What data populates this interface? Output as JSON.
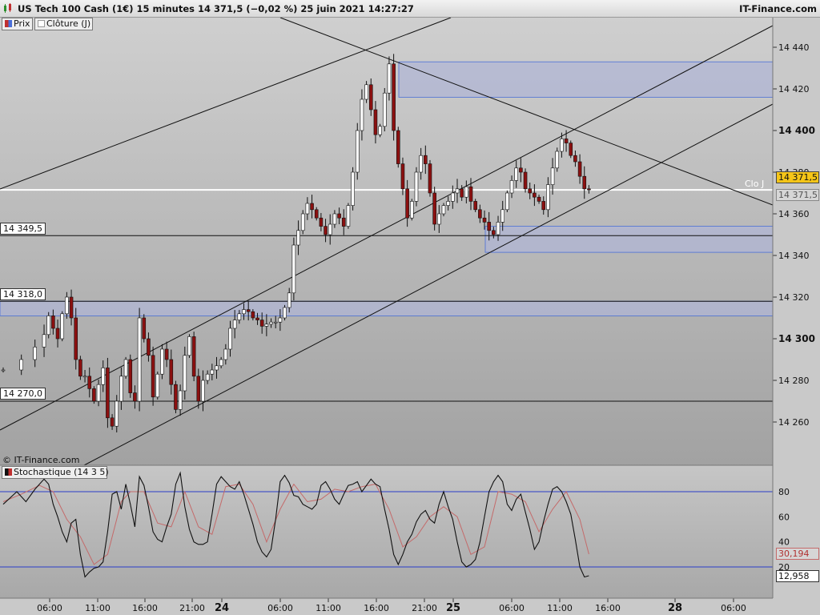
{
  "header": {
    "title": "US Tech 100 Cash (1€) 15 minutes 14 371,5 (−0,02 %) 25 juin 2021 14:27:27",
    "brand": "IT-Finance.com"
  },
  "legend": {
    "price_label": "Prix",
    "close_label": "Clôture (J)",
    "stoch_label": "Stochastique (14 3 5)"
  },
  "copyright": "© IT-Finance.com",
  "levels": [
    {
      "label": "14 349,5",
      "value": 14349.5
    },
    {
      "label": "14 318,0",
      "value": 14318.0
    },
    {
      "label": "14 270,0",
      "value": 14270.0
    }
  ],
  "close_line": {
    "label": "Clo J",
    "value": 14371.5,
    "current_tag": "14 371,5",
    "grey_tag": "14 371,5"
  },
  "stoch_tags": {
    "d": "30,194",
    "k": "12,958"
  },
  "colors": {
    "up": "#ffffff",
    "down": "#8b1010",
    "zone": "#b0b6d4",
    "zone_edge": "#4a6fd8",
    "stoch_d": "#c46a6a"
  },
  "chart_data": {
    "type": "candlestick",
    "price_axis": {
      "range": [
        14236,
        14460
      ],
      "ticks": [
        14260,
        14280,
        14300,
        14320,
        14340,
        14360,
        14380,
        14400,
        14420,
        14440
      ]
    },
    "time_axis": {
      "labels": [
        "06:00",
        "11:00",
        "16:00",
        "21:00",
        "24",
        "06:00",
        "11:00",
        "16:00",
        "21:00",
        "25",
        "06:00",
        "11:00",
        "16:00",
        "28",
        "06:00"
      ]
    },
    "zones": [
      [
        14416,
        14433
      ],
      [
        14341.5,
        14354
      ],
      [
        14311,
        14318
      ]
    ],
    "price_path": [
      [
        0,
        14285
      ],
      [
        4,
        14290
      ],
      [
        7,
        14296
      ],
      [
        9,
        14302
      ],
      [
        10,
        14311
      ],
      [
        11,
        14305
      ],
      [
        12,
        14300
      ],
      [
        13,
        14312
      ],
      [
        14,
        14320
      ],
      [
        15,
        14310
      ],
      [
        16,
        14290
      ],
      [
        17,
        14282
      ],
      [
        18,
        14282
      ],
      [
        19,
        14276
      ],
      [
        20,
        14270
      ],
      [
        21,
        14278
      ],
      [
        22,
        14286
      ],
      [
        23,
        14262
      ],
      [
        24,
        14258
      ],
      [
        25,
        14270
      ],
      [
        26,
        14282
      ],
      [
        27,
        14290
      ],
      [
        28,
        14274
      ],
      [
        29,
        14270
      ],
      [
        30,
        14310
      ],
      [
        31,
        14300
      ],
      [
        32,
        14292
      ],
      [
        33,
        14272
      ],
      [
        34,
        14283
      ],
      [
        35,
        14295
      ],
      [
        36,
        14290
      ],
      [
        37,
        14278
      ],
      [
        38,
        14266
      ],
      [
        39,
        14275
      ],
      [
        40,
        14292
      ],
      [
        41,
        14301
      ],
      [
        42,
        14282
      ],
      [
        43,
        14270
      ],
      [
        44,
        14280
      ],
      [
        45,
        14283
      ],
      [
        46,
        14285
      ],
      [
        47,
        14287
      ],
      [
        48,
        14290
      ],
      [
        49,
        14295
      ],
      [
        50,
        14305
      ],
      [
        51,
        14309
      ],
      [
        52,
        14312
      ],
      [
        53,
        14314
      ],
      [
        54,
        14313
      ],
      [
        55,
        14310
      ],
      [
        56,
        14309
      ],
      [
        57,
        14306
      ],
      [
        58,
        14307
      ],
      [
        59,
        14308
      ],
      [
        60,
        14308
      ],
      [
        61,
        14310
      ],
      [
        62,
        14315
      ],
      [
        63,
        14322
      ],
      [
        64,
        14345
      ],
      [
        65,
        14352
      ],
      [
        66,
        14360
      ],
      [
        67,
        14365
      ],
      [
        68,
        14362
      ],
      [
        69,
        14358
      ],
      [
        70,
        14354
      ],
      [
        71,
        14350
      ],
      [
        72,
        14355
      ],
      [
        73,
        14360
      ],
      [
        74,
        14358
      ],
      [
        75,
        14354
      ],
      [
        76,
        14364
      ],
      [
        77,
        14380
      ],
      [
        78,
        14400
      ],
      [
        79,
        14415
      ],
      [
        80,
        14422
      ],
      [
        81,
        14410
      ],
      [
        82,
        14398
      ],
      [
        83,
        14402
      ],
      [
        84,
        14418
      ],
      [
        85,
        14432
      ],
      [
        86,
        14400
      ],
      [
        87,
        14384
      ],
      [
        88,
        14372
      ],
      [
        89,
        14358
      ],
      [
        90,
        14366
      ],
      [
        91,
        14380
      ],
      [
        92,
        14388
      ],
      [
        93,
        14384
      ],
      [
        94,
        14370
      ],
      [
        95,
        14355
      ],
      [
        96,
        14360
      ],
      [
        97,
        14364
      ],
      [
        98,
        14366
      ],
      [
        99,
        14370
      ],
      [
        100,
        14372
      ],
      [
        101,
        14368
      ],
      [
        102,
        14373
      ],
      [
        103,
        14366
      ],
      [
        104,
        14362
      ],
      [
        105,
        14358
      ],
      [
        106,
        14356
      ],
      [
        107,
        14352
      ],
      [
        108,
        14350
      ],
      [
        109,
        14356
      ],
      [
        110,
        14362
      ],
      [
        111,
        14370
      ],
      [
        112,
        14376
      ],
      [
        113,
        14382
      ],
      [
        114,
        14380
      ],
      [
        115,
        14372
      ],
      [
        116,
        14370
      ],
      [
        117,
        14368
      ],
      [
        118,
        14366
      ],
      [
        119,
        14362
      ],
      [
        120,
        14374
      ],
      [
        121,
        14382
      ],
      [
        122,
        14390
      ],
      [
        123,
        14396
      ],
      [
        124,
        14394
      ],
      [
        125,
        14388
      ],
      [
        126,
        14385
      ],
      [
        127,
        14378
      ],
      [
        128,
        14372
      ],
      [
        129,
        14371.5
      ]
    ],
    "stochastic": {
      "levels": [
        20,
        80
      ],
      "ticks": [
        20,
        40,
        60,
        80
      ],
      "k_path": [
        [
          0,
          70
        ],
        [
          3,
          80
        ],
        [
          5,
          72
        ],
        [
          7,
          82
        ],
        [
          9,
          90
        ],
        [
          10,
          86
        ],
        [
          11,
          70
        ],
        [
          12,
          60
        ],
        [
          13,
          48
        ],
        [
          14,
          40
        ],
        [
          15,
          55
        ],
        [
          16,
          58
        ],
        [
          17,
          30
        ],
        [
          18,
          12
        ],
        [
          19,
          16
        ],
        [
          20,
          19
        ],
        [
          21,
          20
        ],
        [
          22,
          24
        ],
        [
          23,
          48
        ],
        [
          24,
          78
        ],
        [
          25,
          80
        ],
        [
          26,
          66
        ],
        [
          27,
          86
        ],
        [
          28,
          70
        ],
        [
          29,
          52
        ],
        [
          30,
          92
        ],
        [
          31,
          85
        ],
        [
          32,
          68
        ],
        [
          33,
          48
        ],
        [
          34,
          42
        ],
        [
          35,
          40
        ],
        [
          36,
          52
        ],
        [
          37,
          62
        ],
        [
          38,
          86
        ],
        [
          39,
          95
        ],
        [
          40,
          68
        ],
        [
          41,
          50
        ],
        [
          42,
          40
        ],
        [
          43,
          38
        ],
        [
          44,
          38
        ],
        [
          45,
          40
        ],
        [
          46,
          62
        ],
        [
          47,
          86
        ],
        [
          48,
          92
        ],
        [
          49,
          88
        ],
        [
          50,
          84
        ],
        [
          51,
          82
        ],
        [
          52,
          88
        ],
        [
          53,
          78
        ],
        [
          54,
          66
        ],
        [
          55,
          54
        ],
        [
          56,
          40
        ],
        [
          57,
          32
        ],
        [
          58,
          28
        ],
        [
          59,
          34
        ],
        [
          60,
          58
        ],
        [
          61,
          88
        ],
        [
          62,
          93
        ],
        [
          63,
          87
        ],
        [
          64,
          77
        ],
        [
          65,
          76
        ],
        [
          66,
          70
        ],
        [
          67,
          68
        ],
        [
          68,
          66
        ],
        [
          69,
          70
        ],
        [
          70,
          85
        ],
        [
          71,
          88
        ],
        [
          72,
          82
        ],
        [
          73,
          74
        ],
        [
          74,
          70
        ],
        [
          75,
          78
        ],
        [
          76,
          85
        ],
        [
          77,
          86
        ],
        [
          78,
          88
        ],
        [
          79,
          80
        ],
        [
          80,
          85
        ],
        [
          81,
          90
        ],
        [
          82,
          86
        ],
        [
          83,
          84
        ],
        [
          84,
          66
        ],
        [
          85,
          50
        ],
        [
          86,
          30
        ],
        [
          87,
          22
        ],
        [
          88,
          30
        ],
        [
          89,
          40
        ],
        [
          90,
          46
        ],
        [
          91,
          56
        ],
        [
          92,
          62
        ],
        [
          93,
          65
        ],
        [
          94,
          58
        ],
        [
          95,
          55
        ],
        [
          96,
          70
        ],
        [
          97,
          80
        ],
        [
          98,
          68
        ],
        [
          99,
          58
        ],
        [
          100,
          40
        ],
        [
          101,
          24
        ],
        [
          102,
          20
        ],
        [
          103,
          22
        ],
        [
          104,
          26
        ],
        [
          105,
          40
        ],
        [
          106,
          60
        ],
        [
          107,
          80
        ],
        [
          108,
          88
        ],
        [
          109,
          93
        ],
        [
          110,
          88
        ],
        [
          111,
          70
        ],
        [
          112,
          65
        ],
        [
          113,
          74
        ],
        [
          114,
          78
        ],
        [
          115,
          64
        ],
        [
          116,
          50
        ],
        [
          117,
          34
        ],
        [
          118,
          40
        ],
        [
          119,
          56
        ],
        [
          120,
          70
        ],
        [
          121,
          82
        ],
        [
          122,
          84
        ],
        [
          123,
          80
        ],
        [
          124,
          72
        ],
        [
          125,
          62
        ],
        [
          126,
          42
        ],
        [
          127,
          20
        ],
        [
          128,
          12
        ],
        [
          129,
          12.958
        ]
      ],
      "d_path": [
        [
          0,
          72
        ],
        [
          4,
          78
        ],
        [
          8,
          85
        ],
        [
          11,
          80
        ],
        [
          14,
          58
        ],
        [
          17,
          44
        ],
        [
          20,
          22
        ],
        [
          23,
          30
        ],
        [
          26,
          72
        ],
        [
          28,
          80
        ],
        [
          31,
          80
        ],
        [
          34,
          55
        ],
        [
          37,
          52
        ],
        [
          40,
          80
        ],
        [
          43,
          52
        ],
        [
          46,
          46
        ],
        [
          49,
          84
        ],
        [
          52,
          86
        ],
        [
          55,
          70
        ],
        [
          58,
          40
        ],
        [
          61,
          66
        ],
        [
          64,
          86
        ],
        [
          67,
          72
        ],
        [
          70,
          74
        ],
        [
          73,
          82
        ],
        [
          76,
          80
        ],
        [
          79,
          84
        ],
        [
          82,
          86
        ],
        [
          85,
          66
        ],
        [
          88,
          36
        ],
        [
          91,
          44
        ],
        [
          94,
          60
        ],
        [
          97,
          68
        ],
        [
          100,
          60
        ],
        [
          103,
          30
        ],
        [
          106,
          36
        ],
        [
          109,
          80
        ],
        [
          112,
          78
        ],
        [
          115,
          72
        ],
        [
          118,
          48
        ],
        [
          121,
          66
        ],
        [
          124,
          80
        ],
        [
          127,
          58
        ],
        [
          129,
          30.194
        ]
      ]
    }
  }
}
